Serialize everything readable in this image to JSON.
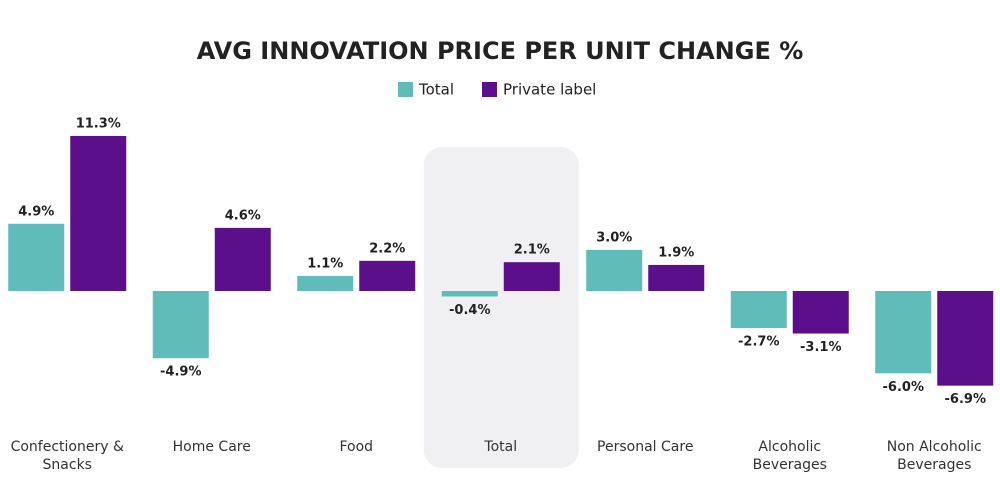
{
  "chart_data": {
    "type": "bar",
    "title": "AVG INNOVATION PRICE PER UNIT CHANGE %",
    "categories": [
      "Confectionery & Snacks",
      "Home Care",
      "Food",
      "Total",
      "Personal Care",
      "Alcoholic Beverages",
      "Non Alcoholic Beverages"
    ],
    "highlight": "Total",
    "series": [
      {
        "name": "Total",
        "color": "#5fbcb8",
        "values": [
          4.9,
          -4.9,
          1.1,
          -0.4,
          3.0,
          -2.7,
          -6.0
        ],
        "value_labels": [
          "4.9%",
          "-4.9%",
          "1.1%",
          "-0.4%",
          "3.0%",
          "-2.7%",
          "-6.0%"
        ]
      },
      {
        "name": "Private label",
        "color": "#5c0f8b",
        "values": [
          11.3,
          4.6,
          2.2,
          2.1,
          1.9,
          -3.1,
          -6.9
        ],
        "value_labels": [
          "11.3%",
          "4.6%",
          "2.2%",
          "2.1%",
          "1.9%",
          "-3.1%",
          "-6.9%"
        ]
      }
    ],
    "legend": "top"
  }
}
